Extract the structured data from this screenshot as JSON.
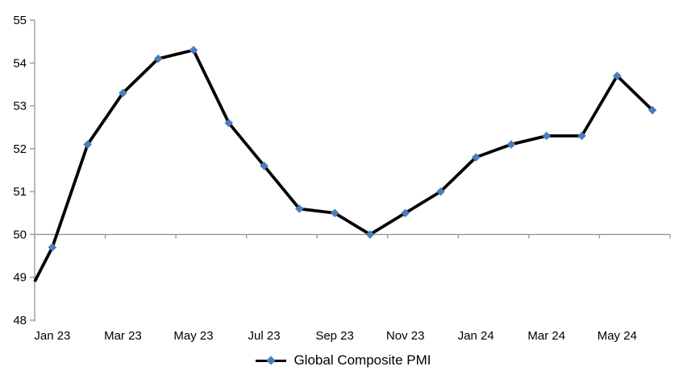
{
  "chart_data": {
    "type": "line",
    "title": "",
    "categories": [
      "Jan 23",
      "Feb 23",
      "Mar 23",
      "Apr 23",
      "May 23",
      "Jun 23",
      "Jul 23",
      "Aug 23",
      "Sep 23",
      "Oct 23",
      "Nov 23",
      "Dec 23",
      "Jan 24",
      "Feb 24",
      "Mar 24",
      "Apr 24",
      "May 24",
      "Jun 24"
    ],
    "series": [
      {
        "name": "Global Composite PMI",
        "marker": "diamond",
        "lead_in_value_at_left_axis": 48.9,
        "values": [
          49.7,
          52.1,
          53.3,
          54.1,
          54.3,
          52.6,
          51.6,
          50.6,
          50.5,
          50.0,
          50.5,
          51.0,
          51.8,
          52.1,
          52.3,
          52.3,
          53.7,
          52.9
        ]
      }
    ],
    "x_tick_labels": [
      "Jan 23",
      "Mar 23",
      "May 23",
      "Jul 23",
      "Sep 23",
      "Nov 23",
      "Jan 24",
      "Mar 24",
      "May 24"
    ],
    "x_label_interval": 2,
    "y_ticks": [
      48,
      49,
      50,
      51,
      52,
      53,
      54,
      55
    ],
    "ylim": [
      48,
      55
    ],
    "x_axis_crosses_at": 50,
    "grid": "off",
    "legend_position": "bottom-center",
    "colors": {
      "line": "#000000",
      "marker": "#4A7EBC",
      "axis": "#969696",
      "text": "#000000",
      "background": "#FFFFFF"
    }
  }
}
